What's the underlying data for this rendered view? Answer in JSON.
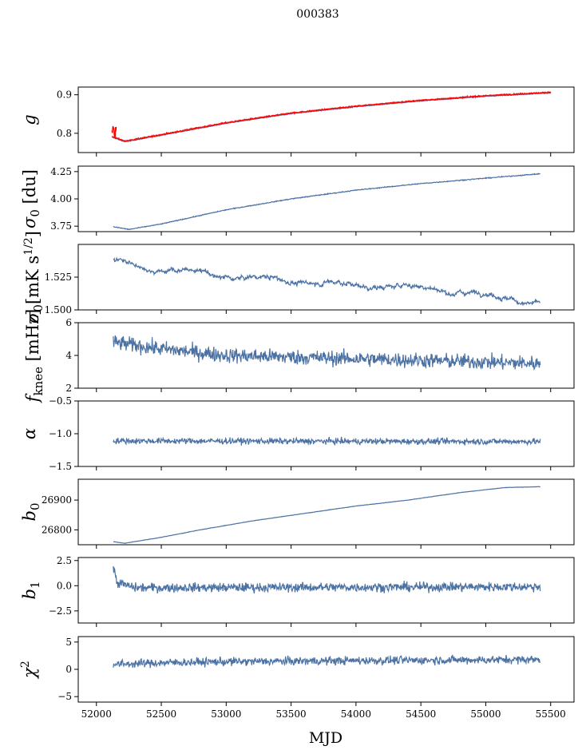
{
  "figure": {
    "title": "000383",
    "xlabel": "MJD"
  },
  "colors": {
    "series": "#4c72a4",
    "model": "#ff0000",
    "axes": "#000000"
  },
  "chart_data": [
    {
      "type": "line",
      "ylabel": "g",
      "xlim": [
        51860,
        55680
      ],
      "ylim": [
        0.75,
        0.92
      ],
      "yticks": [
        0.8,
        0.9
      ],
      "ytick_labels": [
        "0.8",
        "0.9"
      ],
      "shape": "gain",
      "x_start": 52120,
      "x_end": 55500,
      "control_points": [
        [
          52120,
          0.79
        ],
        [
          52220,
          0.778
        ],
        [
          52500,
          0.795
        ],
        [
          53000,
          0.826
        ],
        [
          53500,
          0.851
        ],
        [
          54000,
          0.869
        ],
        [
          54500,
          0.884
        ],
        [
          55000,
          0.896
        ],
        [
          55500,
          0.905
        ]
      ],
      "noise": 0.001,
      "overlay": {
        "name": "model",
        "color": "red",
        "spike_at": 52120,
        "spike_range": [
          0.79,
          0.82
        ]
      }
    },
    {
      "type": "line",
      "ylabel": "σ0 [du]",
      "xlim": [
        51860,
        55680
      ],
      "ylim": [
        3.7,
        4.3
      ],
      "yticks": [
        3.75,
        4.0,
        4.25
      ],
      "ytick_labels": [
        "3.75",
        "4.00",
        "4.25"
      ],
      "shape": "smooth",
      "x_start": 52130,
      "x_end": 55420,
      "control_points": [
        [
          52130,
          3.745
        ],
        [
          52250,
          3.72
        ],
        [
          52500,
          3.77
        ],
        [
          53000,
          3.9
        ],
        [
          53500,
          4.0
        ],
        [
          54000,
          4.08
        ],
        [
          54500,
          4.14
        ],
        [
          55000,
          4.19
        ],
        [
          55420,
          4.23
        ]
      ],
      "noise": 0.004
    },
    {
      "type": "line",
      "ylabel": "σ0[mK s^1/2]",
      "xlim": [
        51860,
        55680
      ],
      "ylim": [
        1.5,
        1.55
      ],
      "yticks": [
        1.5,
        1.525
      ],
      "ytick_labels": [
        "1.500",
        "1.525"
      ],
      "shape": "wavy",
      "x_start": 52130,
      "x_end": 55420,
      "control_points": [
        [
          52130,
          1.537
        ],
        [
          52300,
          1.534
        ],
        [
          52600,
          1.53
        ],
        [
          53000,
          1.526
        ],
        [
          53500,
          1.522
        ],
        [
          54000,
          1.519
        ],
        [
          54500,
          1.517
        ],
        [
          55000,
          1.512
        ],
        [
          55420,
          1.505
        ]
      ],
      "noise": 0.0025
    },
    {
      "type": "line",
      "ylabel": "f_knee [mHz]",
      "xlim": [
        51860,
        55680
      ],
      "ylim": [
        2,
        6
      ],
      "yticks": [
        2,
        4,
        6
      ],
      "ytick_labels": [
        "2",
        "4",
        "6"
      ],
      "shape": "noisy",
      "x_start": 52130,
      "x_end": 55420,
      "control_points": [
        [
          52130,
          4.8
        ],
        [
          52500,
          4.4
        ],
        [
          53000,
          4.0
        ],
        [
          53500,
          3.9
        ],
        [
          54000,
          3.8
        ],
        [
          54500,
          3.7
        ],
        [
          55000,
          3.6
        ],
        [
          55420,
          3.5
        ]
      ],
      "noise": 0.45
    },
    {
      "type": "line",
      "ylabel": "α",
      "xlim": [
        51860,
        55680
      ],
      "ylim": [
        -1.5,
        -0.5
      ],
      "yticks": [
        -1.5,
        -1.0,
        -0.5
      ],
      "ytick_labels": [
        "−1.5",
        "−1.0",
        "−0.5"
      ],
      "shape": "noisy",
      "x_start": 52130,
      "x_end": 55420,
      "control_points": [
        [
          52130,
          -1.11
        ],
        [
          55420,
          -1.12
        ]
      ],
      "noise": 0.045
    },
    {
      "type": "line",
      "ylabel": "b0",
      "xlim": [
        51860,
        55680
      ],
      "ylim": [
        26750,
        26970
      ],
      "yticks": [
        26800,
        26900
      ],
      "ytick_labels": [
        "26800",
        "26900"
      ],
      "shape": "smooth",
      "x_start": 52130,
      "x_end": 55420,
      "control_points": [
        [
          52130,
          26760
        ],
        [
          52220,
          26755
        ],
        [
          52500,
          26775
        ],
        [
          52800,
          26800
        ],
        [
          53200,
          26830
        ],
        [
          53600,
          26855
        ],
        [
          54000,
          26880
        ],
        [
          54400,
          26900
        ],
        [
          54800,
          26925
        ],
        [
          55150,
          26942
        ],
        [
          55420,
          26945
        ]
      ],
      "noise": 0.6
    },
    {
      "type": "line",
      "ylabel": "b1",
      "xlim": [
        51860,
        55680
      ],
      "ylim": [
        -3.7,
        2.8
      ],
      "yticks": [
        -2.5,
        0.0,
        2.5
      ],
      "ytick_labels": [
        "−2.5",
        "0.0",
        "2.5"
      ],
      "shape": "noisy",
      "x_start": 52130,
      "x_end": 55420,
      "control_points": [
        [
          52130,
          1.8
        ],
        [
          52160,
          0.3
        ],
        [
          52300,
          -0.2
        ],
        [
          55420,
          -0.1
        ]
      ],
      "noise": 0.45
    },
    {
      "type": "line",
      "ylabel": "χ²",
      "xlim": [
        51860,
        55680
      ],
      "ylim": [
        -6,
        6
      ],
      "yticks": [
        -5,
        0,
        5
      ],
      "ytick_labels": [
        "−5",
        "0",
        "5"
      ],
      "shape": "noisy",
      "x_start": 52130,
      "x_end": 55420,
      "control_points": [
        [
          52130,
          0.9
        ],
        [
          52500,
          1.2
        ],
        [
          53000,
          1.4
        ],
        [
          54000,
          1.6
        ],
        [
          55420,
          1.8
        ]
      ],
      "noise": 0.75
    }
  ],
  "xaxis": {
    "ticks": [
      52000,
      52500,
      53000,
      53500,
      54000,
      54500,
      55000,
      55500
    ],
    "tick_labels": [
      "52000",
      "52500",
      "53000",
      "53500",
      "54000",
      "54500",
      "55000",
      "55500"
    ]
  }
}
